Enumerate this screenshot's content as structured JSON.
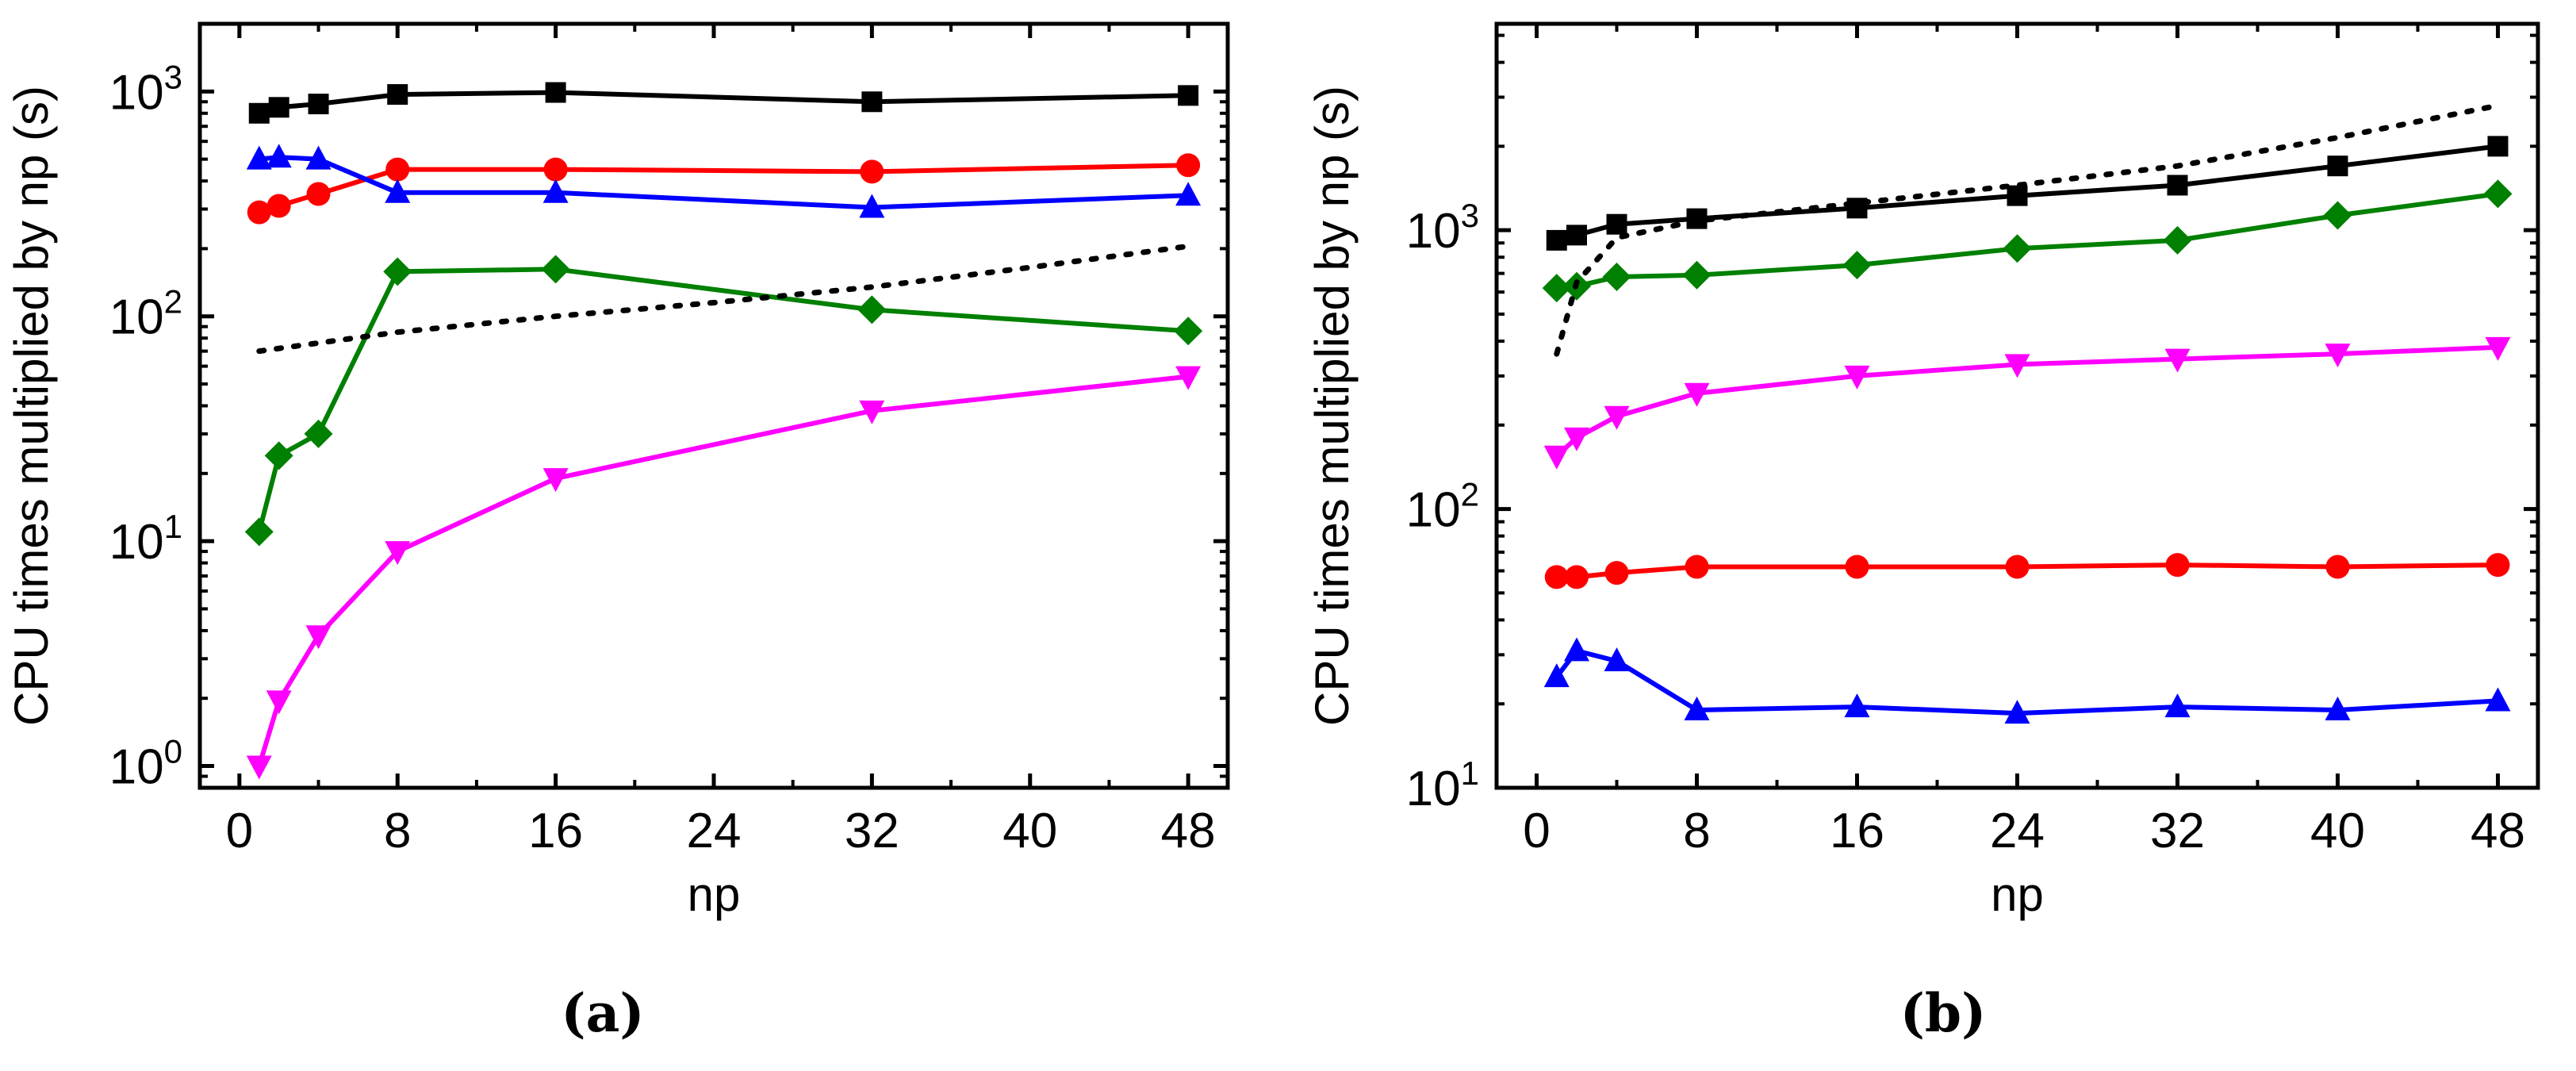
{
  "chart_data": [
    {
      "type": "line",
      "caption": "(a)",
      "xlabel": "np",
      "ylabel": "CPU times multiplied by np (s)",
      "yscale": "log",
      "xlim": [
        -2,
        50
      ],
      "ylim": [
        0.8,
        2000
      ],
      "xticks": [
        0,
        8,
        16,
        24,
        32,
        40,
        48
      ],
      "xtick_labels": [
        "0",
        "8",
        "16",
        "24",
        "32",
        "40",
        "48"
      ],
      "yticks": [
        1,
        10,
        100,
        1000
      ],
      "ytick_labels": [
        {
          "base": "10",
          "exp": "0"
        },
        {
          "base": "10",
          "exp": "1"
        },
        {
          "base": "10",
          "exp": "2"
        },
        {
          "base": "10",
          "exp": "3"
        }
      ],
      "series": [
        {
          "name": "black",
          "color": "#000000",
          "marker": "square",
          "style": "solid",
          "x": [
            1,
            2,
            4,
            8,
            16,
            32,
            48
          ],
          "y": [
            800,
            850,
            880,
            970,
            990,
            900,
            960
          ]
        },
        {
          "name": "red",
          "color": "#ff0000",
          "marker": "circle",
          "style": "solid",
          "x": [
            1,
            2,
            4,
            8,
            16,
            32,
            48
          ],
          "y": [
            290,
            310,
            350,
            450,
            450,
            440,
            470
          ]
        },
        {
          "name": "blue",
          "color": "#0000ff",
          "marker": "triangle-up",
          "style": "solid",
          "x": [
            1,
            2,
            4,
            8,
            16,
            32,
            48
          ],
          "y": [
            500,
            510,
            500,
            355,
            355,
            305,
            345
          ]
        },
        {
          "name": "green",
          "color": "#008000",
          "marker": "diamond",
          "style": "solid",
          "x": [
            1,
            2,
            4,
            8,
            16,
            32,
            48
          ],
          "y": [
            11,
            24,
            30,
            158,
            162,
            107,
            86
          ]
        },
        {
          "name": "magenta",
          "color": "#ff00ff",
          "marker": "triangle-down",
          "style": "solid",
          "x": [
            1,
            2,
            4,
            8,
            16,
            32,
            48
          ],
          "y": [
            1.0,
            1.95,
            3.8,
            9,
            19,
            38,
            54
          ]
        },
        {
          "name": "reference",
          "color": "#000000",
          "marker": "none",
          "style": "dotted",
          "x": [
            1,
            8,
            16,
            24,
            32,
            40,
            48
          ],
          "y": [
            70,
            85,
            100,
            115,
            135,
            165,
            205
          ]
        }
      ]
    },
    {
      "type": "line",
      "caption": "(b)",
      "xlabel": "np",
      "ylabel": "CPU times multiplied by np (s)",
      "yscale": "log",
      "xlim": [
        -2,
        50
      ],
      "ylim": [
        10,
        5500
      ],
      "xticks": [
        0,
        8,
        16,
        24,
        32,
        40,
        48
      ],
      "xtick_labels": [
        "0",
        "8",
        "16",
        "24",
        "32",
        "40",
        "48"
      ],
      "yticks": [
        10,
        100,
        1000
      ],
      "ytick_labels": [
        {
          "base": "10",
          "exp": "1"
        },
        {
          "base": "10",
          "exp": "2"
        },
        {
          "base": "10",
          "exp": "3"
        }
      ],
      "series": [
        {
          "name": "black",
          "color": "#000000",
          "marker": "square",
          "style": "solid",
          "x": [
            1,
            2,
            4,
            8,
            16,
            24,
            32,
            40,
            48
          ],
          "y": [
            920,
            960,
            1050,
            1100,
            1200,
            1330,
            1450,
            1700,
            2000
          ]
        },
        {
          "name": "green",
          "color": "#008000",
          "marker": "diamond",
          "style": "solid",
          "x": [
            1,
            2,
            4,
            8,
            16,
            24,
            32,
            40,
            48
          ],
          "y": [
            620,
            630,
            680,
            690,
            750,
            860,
            920,
            1130,
            1350
          ]
        },
        {
          "name": "magenta",
          "color": "#ff00ff",
          "marker": "triangle-down",
          "style": "solid",
          "x": [
            1,
            2,
            4,
            8,
            16,
            24,
            32,
            40,
            48
          ],
          "y": [
            155,
            180,
            215,
            260,
            300,
            330,
            345,
            360,
            380
          ]
        },
        {
          "name": "red",
          "color": "#ff0000",
          "marker": "circle",
          "style": "solid",
          "x": [
            1,
            2,
            4,
            8,
            16,
            24,
            32,
            40,
            48
          ],
          "y": [
            57,
            57,
            59,
            62,
            62,
            62,
            63,
            62,
            63
          ]
        },
        {
          "name": "blue",
          "color": "#0000ff",
          "marker": "triangle-up",
          "style": "solid",
          "x": [
            1,
            2,
            4,
            8,
            16,
            24,
            32,
            40,
            48
          ],
          "y": [
            25,
            31,
            28.5,
            19,
            19.5,
            18.5,
            19.5,
            19,
            20.5
          ]
        },
        {
          "name": "reference",
          "color": "#000000",
          "marker": "none",
          "style": "dotted",
          "x": [
            1,
            2,
            4,
            8,
            16,
            24,
            32,
            40,
            48
          ],
          "y": [
            360,
            650,
            940,
            1080,
            1250,
            1450,
            1700,
            2150,
            2800
          ]
        }
      ]
    }
  ]
}
